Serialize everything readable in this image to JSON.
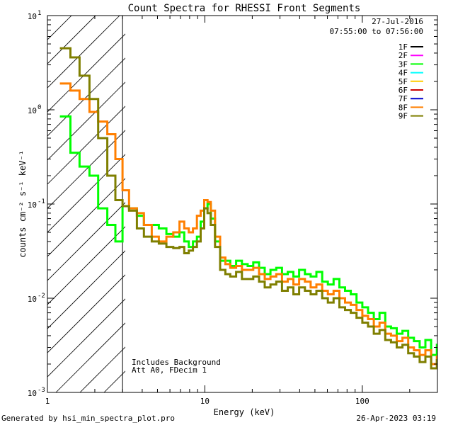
{
  "chart_data": {
    "type": "line",
    "title": "Count Spectra for RHESSI Front Segments",
    "xlabel": "Energy (keV)",
    "ylabel": "counts cm⁻² s⁻¹ keV⁻¹",
    "xscale": "log",
    "yscale": "log",
    "xlim": [
      1,
      300
    ],
    "ylim": [
      0.001,
      10
    ],
    "x_ticks": [
      {
        "value": 1,
        "label": "1"
      },
      {
        "value": 10,
        "label": "10"
      },
      {
        "value": 100,
        "label": "100"
      }
    ],
    "y_ticks": [
      {
        "value": 0.001,
        "base": "10",
        "exp": "-3"
      },
      {
        "value": 0.01,
        "base": "10",
        "exp": "-2"
      },
      {
        "value": 0.1,
        "base": "10",
        "exp": "-1"
      },
      {
        "value": 1,
        "base": "10",
        "exp": "0"
      },
      {
        "value": 10,
        "base": "10",
        "exp": "1"
      }
    ],
    "hatched_region": {
      "x_from": 1,
      "x_to": 3
    },
    "legend": {
      "position": "top-right",
      "date": "27-Jul-2016",
      "time_range": "07:55:00 to 07:56:00",
      "entries": [
        {
          "name": "1F",
          "color": "#000000"
        },
        {
          "name": "2F",
          "color": "#ff00ff"
        },
        {
          "name": "3F",
          "color": "#00ff00"
        },
        {
          "name": "4F",
          "color": "#00ffff"
        },
        {
          "name": "5F",
          "color": "#ffcc00"
        },
        {
          "name": "6F",
          "color": "#cc0000"
        },
        {
          "name": "7F",
          "color": "#0000cc"
        },
        {
          "name": "8F",
          "color": "#ff7f00"
        },
        {
          "name": "9F",
          "color": "#7f7f00"
        }
      ]
    },
    "annotations": [
      "Includes Background",
      "Att A0, FDecim 1"
    ],
    "series": [
      {
        "name": "3F",
        "color": "#00ff00",
        "points": [
          [
            1.2,
            0.85
          ],
          [
            1.4,
            0.35
          ],
          [
            1.6,
            0.25
          ],
          [
            1.85,
            0.2
          ],
          [
            2.1,
            0.09
          ],
          [
            2.4,
            0.06
          ],
          [
            2.7,
            0.04
          ],
          [
            3.0,
            0.095
          ],
          [
            3.3,
            0.09
          ],
          [
            3.7,
            0.075
          ],
          [
            4.1,
            0.06
          ],
          [
            4.6,
            0.06
          ],
          [
            5.1,
            0.055
          ],
          [
            5.7,
            0.048
          ],
          [
            6.3,
            0.045
          ],
          [
            6.9,
            0.05
          ],
          [
            7.4,
            0.04
          ],
          [
            7.9,
            0.035
          ],
          [
            8.4,
            0.04
          ],
          [
            8.9,
            0.045
          ],
          [
            9.4,
            0.065
          ],
          [
            9.9,
            0.09
          ],
          [
            10.4,
            0.1
          ],
          [
            10.9,
            0.07
          ],
          [
            11.6,
            0.04
          ],
          [
            12.5,
            0.025
          ],
          [
            13.5,
            0.025
          ],
          [
            14.5,
            0.022
          ],
          [
            15.8,
            0.025
          ],
          [
            17.2,
            0.023
          ],
          [
            18.7,
            0.022
          ],
          [
            20.3,
            0.024
          ],
          [
            22.1,
            0.021
          ],
          [
            24,
            0.018
          ],
          [
            26.1,
            0.02
          ],
          [
            28.4,
            0.021
          ],
          [
            30.9,
            0.018
          ],
          [
            33.6,
            0.019
          ],
          [
            36.5,
            0.017
          ],
          [
            39.7,
            0.02
          ],
          [
            43.2,
            0.018
          ],
          [
            47,
            0.017
          ],
          [
            51.1,
            0.019
          ],
          [
            55.6,
            0.015
          ],
          [
            60.4,
            0.014
          ],
          [
            65.7,
            0.016
          ],
          [
            71.5,
            0.013
          ],
          [
            77.7,
            0.012
          ],
          [
            84.5,
            0.011
          ],
          [
            91.9,
            0.009
          ],
          [
            100,
            0.008
          ],
          [
            108.8,
            0.007
          ],
          [
            118.3,
            0.006
          ],
          [
            128.6,
            0.007
          ],
          [
            139.9,
            0.005
          ],
          [
            152.1,
            0.0048
          ],
          [
            165.4,
            0.0042
          ],
          [
            179.9,
            0.0045
          ],
          [
            195.6,
            0.0038
          ],
          [
            212.7,
            0.0035
          ],
          [
            231.3,
            0.003
          ],
          [
            251.6,
            0.0036
          ],
          [
            273.6,
            0.0025
          ],
          [
            297.5,
            0.0032
          ]
        ]
      },
      {
        "name": "8F",
        "color": "#ff7f00",
        "points": [
          [
            1.2,
            1.9
          ],
          [
            1.4,
            1.6
          ],
          [
            1.6,
            1.3
          ],
          [
            1.85,
            0.95
          ],
          [
            2.1,
            0.75
          ],
          [
            2.4,
            0.55
          ],
          [
            2.7,
            0.3
          ],
          [
            3.0,
            0.14
          ],
          [
            3.3,
            0.09
          ],
          [
            3.7,
            0.08
          ],
          [
            4.1,
            0.06
          ],
          [
            4.6,
            0.045
          ],
          [
            5.1,
            0.04
          ],
          [
            5.7,
            0.045
          ],
          [
            6.3,
            0.05
          ],
          [
            6.9,
            0.065
          ],
          [
            7.4,
            0.055
          ],
          [
            7.9,
            0.05
          ],
          [
            8.4,
            0.055
          ],
          [
            8.9,
            0.075
          ],
          [
            9.4,
            0.085
          ],
          [
            9.9,
            0.11
          ],
          [
            10.4,
            0.105
          ],
          [
            10.9,
            0.085
          ],
          [
            11.6,
            0.045
          ],
          [
            12.5,
            0.027
          ],
          [
            13.5,
            0.023
          ],
          [
            14.5,
            0.021
          ],
          [
            15.8,
            0.022
          ],
          [
            17.2,
            0.02
          ],
          [
            18.7,
            0.02
          ],
          [
            20.3,
            0.021
          ],
          [
            22.1,
            0.018
          ],
          [
            24,
            0.016
          ],
          [
            26.1,
            0.017
          ],
          [
            28.4,
            0.018
          ],
          [
            30.9,
            0.015
          ],
          [
            33.6,
            0.016
          ],
          [
            36.5,
            0.014
          ],
          [
            39.7,
            0.016
          ],
          [
            43.2,
            0.015
          ],
          [
            47,
            0.013
          ],
          [
            51.1,
            0.014
          ],
          [
            55.6,
            0.012
          ],
          [
            60.4,
            0.011
          ],
          [
            65.7,
            0.012
          ],
          [
            71.5,
            0.01
          ],
          [
            77.7,
            0.009
          ],
          [
            84.5,
            0.0085
          ],
          [
            91.9,
            0.0075
          ],
          [
            100,
            0.0065
          ],
          [
            108.8,
            0.006
          ],
          [
            118.3,
            0.005
          ],
          [
            128.6,
            0.0055
          ],
          [
            139.9,
            0.0042
          ],
          [
            152.1,
            0.004
          ],
          [
            165.4,
            0.0035
          ],
          [
            179.9,
            0.0038
          ],
          [
            195.6,
            0.003
          ],
          [
            212.7,
            0.0028
          ],
          [
            231.3,
            0.0025
          ],
          [
            251.6,
            0.0028
          ],
          [
            273.6,
            0.002
          ],
          [
            297.5,
            0.0024
          ]
        ]
      },
      {
        "name": "9F",
        "color": "#7f7f00",
        "points": [
          [
            1.2,
            4.5
          ],
          [
            1.4,
            3.6
          ],
          [
            1.6,
            2.3
          ],
          [
            1.85,
            1.3
          ],
          [
            2.1,
            0.5
          ],
          [
            2.4,
            0.2
          ],
          [
            2.7,
            0.11
          ],
          [
            3.0,
            0.095
          ],
          [
            3.3,
            0.085
          ],
          [
            3.7,
            0.055
          ],
          [
            4.1,
            0.045
          ],
          [
            4.6,
            0.04
          ],
          [
            5.1,
            0.038
          ],
          [
            5.7,
            0.035
          ],
          [
            6.3,
            0.034
          ],
          [
            6.9,
            0.035
          ],
          [
            7.4,
            0.03
          ],
          [
            7.9,
            0.032
          ],
          [
            8.4,
            0.035
          ],
          [
            8.9,
            0.04
          ],
          [
            9.4,
            0.055
          ],
          [
            9.9,
            0.09
          ],
          [
            10.4,
            0.08
          ],
          [
            10.9,
            0.06
          ],
          [
            11.6,
            0.035
          ],
          [
            12.5,
            0.02
          ],
          [
            13.5,
            0.018
          ],
          [
            14.5,
            0.017
          ],
          [
            15.8,
            0.019
          ],
          [
            17.2,
            0.016
          ],
          [
            18.7,
            0.016
          ],
          [
            20.3,
            0.017
          ],
          [
            22.1,
            0.015
          ],
          [
            24,
            0.013
          ],
          [
            26.1,
            0.014
          ],
          [
            28.4,
            0.015
          ],
          [
            30.9,
            0.012
          ],
          [
            33.6,
            0.013
          ],
          [
            36.5,
            0.011
          ],
          [
            39.7,
            0.013
          ],
          [
            43.2,
            0.012
          ],
          [
            47,
            0.011
          ],
          [
            51.1,
            0.012
          ],
          [
            55.6,
            0.01
          ],
          [
            60.4,
            0.009
          ],
          [
            65.7,
            0.01
          ],
          [
            71.5,
            0.008
          ],
          [
            77.7,
            0.0075
          ],
          [
            84.5,
            0.007
          ],
          [
            91.9,
            0.0062
          ],
          [
            100,
            0.0055
          ],
          [
            108.8,
            0.005
          ],
          [
            118.3,
            0.0042
          ],
          [
            128.6,
            0.0046
          ],
          [
            139.9,
            0.0036
          ],
          [
            152.1,
            0.0034
          ],
          [
            165.4,
            0.003
          ],
          [
            179.9,
            0.0032
          ],
          [
            195.6,
            0.0026
          ],
          [
            212.7,
            0.0024
          ],
          [
            231.3,
            0.0021
          ],
          [
            251.6,
            0.0024
          ],
          [
            273.6,
            0.0018
          ],
          [
            297.5,
            0.0022
          ]
        ]
      }
    ]
  },
  "footer": {
    "generated_by": "Generated by hsi_min_spectra_plot.pro",
    "timestamp": "26-Apr-2023 03:19"
  }
}
